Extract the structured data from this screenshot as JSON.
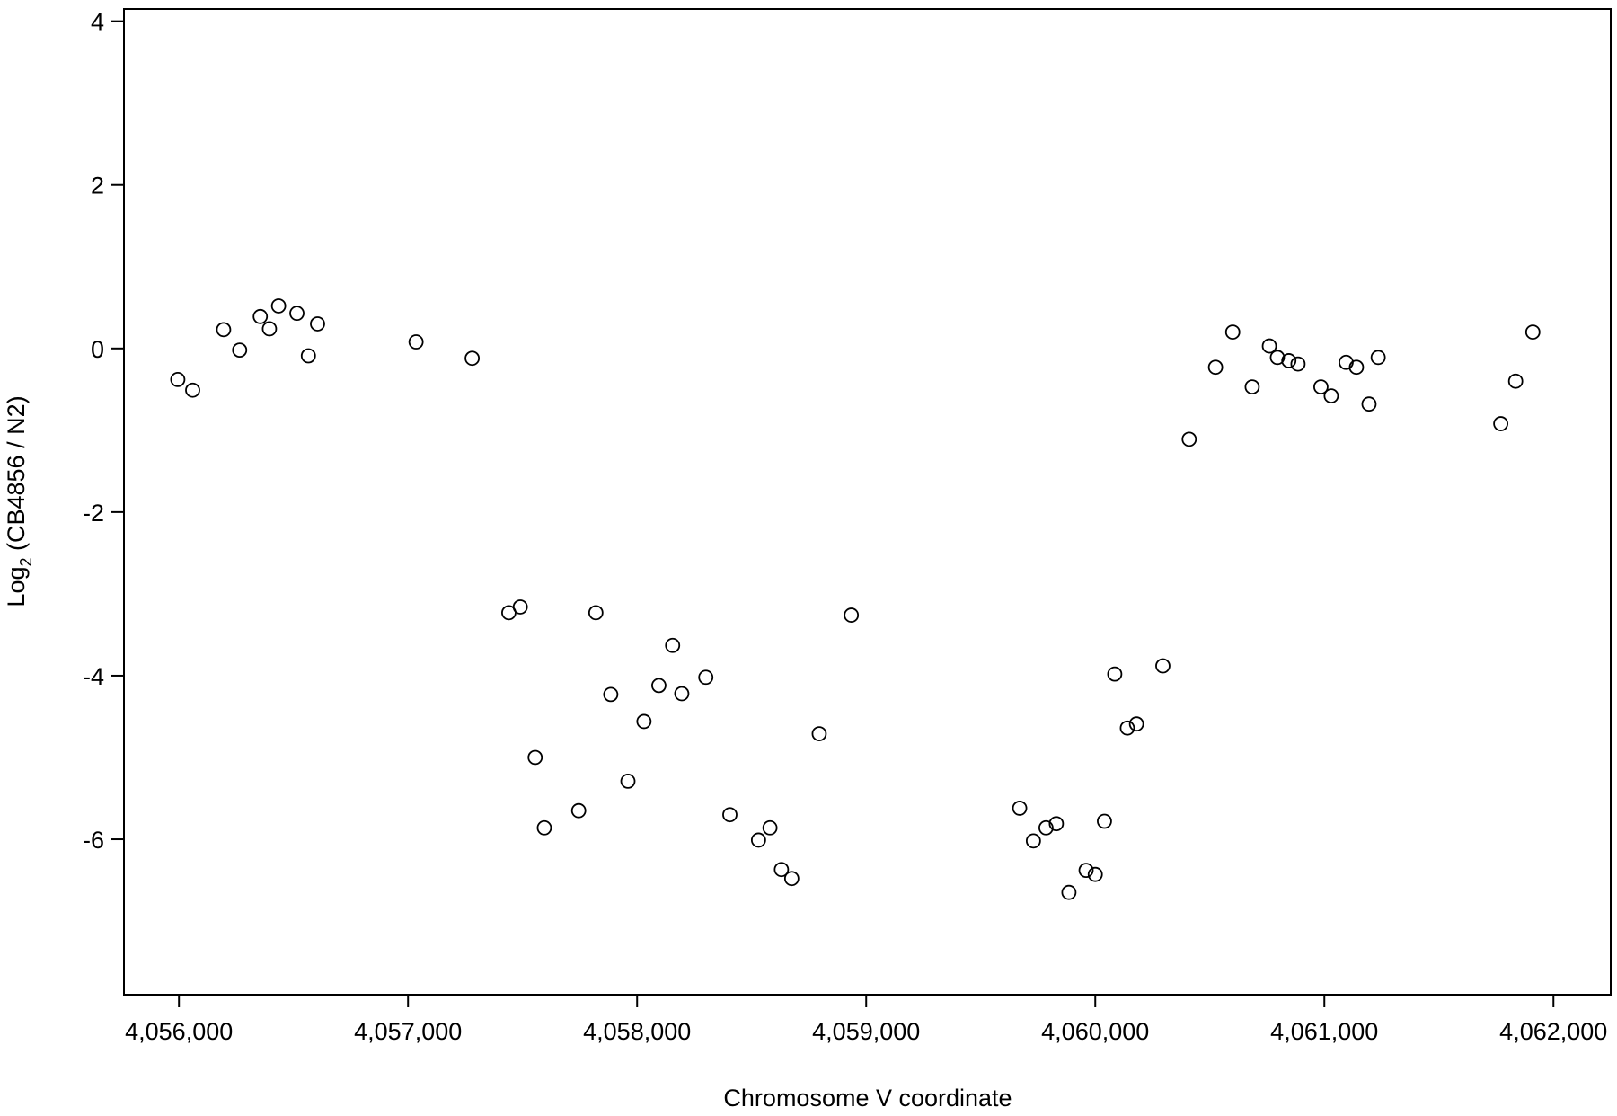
{
  "chart_data": {
    "type": "scatter",
    "title": "",
    "xlabel": "Chromosome V coordinate",
    "ylabel_main": "Log",
    "ylabel_sub": "2",
    "ylabel_rest": " (CB4856 / N2)",
    "xlim": [
      4055760,
      4062250
    ],
    "ylim": [
      -7.9,
      4.15
    ],
    "x_ticks": [
      4056000,
      4057000,
      4058000,
      4059000,
      4060000,
      4061000,
      4062000
    ],
    "x_tick_labels": [
      "4,056,000",
      "4,057,000",
      "4,058,000",
      "4,059,000",
      "4,060,000",
      "4,061,000",
      "4,062,000"
    ],
    "y_ticks": [
      -6,
      -4,
      -2,
      0,
      2,
      4
    ],
    "y_tick_labels": [
      "-6",
      "-4",
      "-2",
      "0",
      "2",
      "4"
    ],
    "grid": false,
    "marker": "open-circle",
    "colors": {
      "marker": "#000000",
      "axis": "#000000",
      "background": "#ffffff"
    },
    "points": [
      [
        4055995,
        -0.38
      ],
      [
        4056060,
        -0.51
      ],
      [
        4056195,
        0.23
      ],
      [
        4056265,
        -0.02
      ],
      [
        4056355,
        0.39
      ],
      [
        4056395,
        0.24
      ],
      [
        4056435,
        0.52
      ],
      [
        4056515,
        0.43
      ],
      [
        4056565,
        -0.09
      ],
      [
        4056605,
        0.3
      ],
      [
        4057035,
        0.08
      ],
      [
        4057280,
        -0.12
      ],
      [
        4057440,
        -3.23
      ],
      [
        4057490,
        -3.16
      ],
      [
        4057555,
        -5.0
      ],
      [
        4057595,
        -5.86
      ],
      [
        4057745,
        -5.65
      ],
      [
        4057820,
        -3.23
      ],
      [
        4057885,
        -4.23
      ],
      [
        4057960,
        -5.29
      ],
      [
        4058030,
        -4.56
      ],
      [
        4058095,
        -4.12
      ],
      [
        4058155,
        -3.63
      ],
      [
        4058195,
        -4.22
      ],
      [
        4058300,
        -4.02
      ],
      [
        4058405,
        -5.7
      ],
      [
        4058530,
        -6.01
      ],
      [
        4058580,
        -5.86
      ],
      [
        4058630,
        -6.37
      ],
      [
        4058675,
        -6.48
      ],
      [
        4058795,
        -4.71
      ],
      [
        4058935,
        -3.26
      ],
      [
        4059670,
        -5.62
      ],
      [
        4059730,
        -6.02
      ],
      [
        4059785,
        -5.86
      ],
      [
        4059830,
        -5.81
      ],
      [
        4059885,
        -6.65
      ],
      [
        4059960,
        -6.38
      ],
      [
        4060000,
        -6.43
      ],
      [
        4060040,
        -5.78
      ],
      [
        4060085,
        -3.98
      ],
      [
        4060140,
        -4.64
      ],
      [
        4060180,
        -4.59
      ],
      [
        4060295,
        -3.88
      ],
      [
        4060410,
        -1.11
      ],
      [
        4060525,
        -0.23
      ],
      [
        4060600,
        0.2
      ],
      [
        4060685,
        -0.47
      ],
      [
        4060760,
        0.03
      ],
      [
        4060795,
        -0.11
      ],
      [
        4060845,
        -0.15
      ],
      [
        4060885,
        -0.19
      ],
      [
        4060985,
        -0.47
      ],
      [
        4061030,
        -0.58
      ],
      [
        4061095,
        -0.17
      ],
      [
        4061140,
        -0.23
      ],
      [
        4061195,
        -0.68
      ],
      [
        4061235,
        -0.11
      ],
      [
        4061770,
        -0.92
      ],
      [
        4061835,
        -0.4
      ],
      [
        4061910,
        0.2
      ]
    ]
  }
}
